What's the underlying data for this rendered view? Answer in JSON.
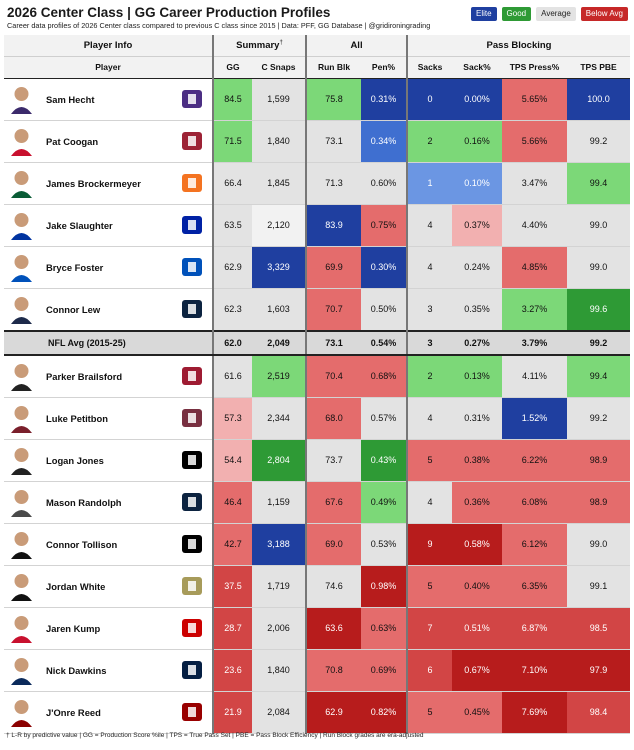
{
  "header": {
    "title": "2026 Center Class | GG Career Production Profiles",
    "subtitle": "Career data profiles of 2026 Center class compared to previous C class since 2015 | Data: PFF, GG Database | @gridironingrading"
  },
  "legend": [
    {
      "label": "Elite",
      "bg": "#1f3fa0",
      "fg": "#ffffff"
    },
    {
      "label": "Good",
      "bg": "#2e9a35",
      "fg": "#ffffff"
    },
    {
      "label": "Average",
      "bg": "#e3e3e3",
      "fg": "#222222"
    },
    {
      "label": "Below Avg",
      "bg": "#c62828",
      "fg": "#ffffff"
    }
  ],
  "groups": {
    "player_info": "Player Info",
    "summary": "Summary",
    "summary_mark": "†",
    "all": "All",
    "pass_blocking": "Pass Blocking"
  },
  "columns": {
    "player": "Player",
    "gg": "GG",
    "c_snaps": "C Snaps",
    "run_blk": "Run Blk",
    "pen": "Pen%",
    "sacks": "Sacks",
    "sack_pct": "Sack%",
    "tps_press": "TPS Press%",
    "tps_pbe": "TPS PBE"
  },
  "nfl_avg": {
    "label": "NFL Avg (2015-25)",
    "gg": "62.0",
    "c_snaps": "2,049",
    "run_blk": "73.1",
    "pen": "0.54%",
    "sacks": "3",
    "sack_pct": "0.27%",
    "tps_press": "3.79%",
    "tps_pbe": "99.2"
  },
  "chart_data": {
    "type": "table",
    "title": "2026 Center Class | GG Career Production Profiles",
    "columns": [
      "Player",
      "GG",
      "C Snaps",
      "Run Blk",
      "Pen%",
      "Sacks",
      "Sack%",
      "TPS Press%",
      "TPS PBE"
    ],
    "rows_top": [
      {
        "player": "Sam Hecht",
        "gg": "84.5",
        "c_snaps": "1,599",
        "run_blk": "75.8",
        "pen": "0.31%",
        "sacks": "0",
        "sack_pct": "0.00%",
        "tps_press": "5.65%",
        "tps_pbe": "100.0",
        "colors": {
          "gg": "#7cd878",
          "c_snaps": "#e3e3e3",
          "run_blk": "#7cd878",
          "pen": "#1f3fa0",
          "sacks": "#1f3fa0",
          "sack_pct": "#1f3fa0",
          "tps_press": "#e46c6c",
          "tps_pbe": "#1f3fa0"
        }
      },
      {
        "player": "Pat Coogan",
        "gg": "71.5",
        "c_snaps": "1,840",
        "run_blk": "73.1",
        "pen": "0.34%",
        "sacks": "2",
        "sack_pct": "0.16%",
        "tps_press": "5.66%",
        "tps_pbe": "99.2",
        "colors": {
          "gg": "#7cd878",
          "c_snaps": "#e3e3e3",
          "run_blk": "#e3e3e3",
          "pen": "#3f6fd0",
          "sacks": "#7cd878",
          "sack_pct": "#7cd878",
          "tps_press": "#e46c6c",
          "tps_pbe": "#e3e3e3"
        }
      },
      {
        "player": "James Brockermeyer",
        "gg": "66.4",
        "c_snaps": "1,845",
        "run_blk": "71.3",
        "pen": "0.60%",
        "sacks": "1",
        "sack_pct": "0.10%",
        "tps_press": "3.47%",
        "tps_pbe": "99.4",
        "colors": {
          "gg": "#e3e3e3",
          "c_snaps": "#e3e3e3",
          "run_blk": "#e3e3e3",
          "pen": "#e3e3e3",
          "sacks": "#6b96e3",
          "sack_pct": "#6b96e3",
          "tps_press": "#e3e3e3",
          "tps_pbe": "#7cd878"
        }
      },
      {
        "player": "Jake Slaughter",
        "gg": "63.5",
        "c_snaps": "2,120",
        "run_blk": "83.9",
        "pen": "0.75%",
        "sacks": "4",
        "sack_pct": "0.37%",
        "tps_press": "4.40%",
        "tps_pbe": "99.0",
        "colors": {
          "gg": "#e3e3e3",
          "c_snaps": "#f2f2f2",
          "run_blk": "#1f3fa0",
          "pen": "#e46c6c",
          "sacks": "#e3e3e3",
          "sack_pct": "#f2b0b0",
          "tps_press": "#e3e3e3",
          "tps_pbe": "#e3e3e3"
        }
      },
      {
        "player": "Bryce Foster",
        "gg": "62.9",
        "c_snaps": "3,329",
        "run_blk": "69.9",
        "pen": "0.30%",
        "sacks": "4",
        "sack_pct": "0.24%",
        "tps_press": "4.85%",
        "tps_pbe": "99.0",
        "colors": {
          "gg": "#e3e3e3",
          "c_snaps": "#1f3fa0",
          "run_blk": "#e46c6c",
          "pen": "#1f3fa0",
          "sacks": "#e3e3e3",
          "sack_pct": "#e3e3e3",
          "tps_press": "#e46c6c",
          "tps_pbe": "#e3e3e3"
        }
      },
      {
        "player": "Connor Lew",
        "gg": "62.3",
        "c_snaps": "1,603",
        "run_blk": "70.7",
        "pen": "0.50%",
        "sacks": "3",
        "sack_pct": "0.35%",
        "tps_press": "3.27%",
        "tps_pbe": "99.6",
        "colors": {
          "gg": "#e3e3e3",
          "c_snaps": "#e3e3e3",
          "run_blk": "#e46c6c",
          "pen": "#e3e3e3",
          "sacks": "#e3e3e3",
          "sack_pct": "#e3e3e3",
          "tps_press": "#7cd878",
          "tps_pbe": "#2e9a35"
        }
      }
    ],
    "rows_bottom": [
      {
        "player": "Parker Brailsford",
        "gg": "61.6",
        "c_snaps": "2,519",
        "run_blk": "70.4",
        "pen": "0.68%",
        "sacks": "2",
        "sack_pct": "0.13%",
        "tps_press": "4.11%",
        "tps_pbe": "99.4",
        "colors": {
          "gg": "#e3e3e3",
          "c_snaps": "#7cd878",
          "run_blk": "#e46c6c",
          "pen": "#e46c6c",
          "sacks": "#7cd878",
          "sack_pct": "#7cd878",
          "tps_press": "#e3e3e3",
          "tps_pbe": "#7cd878"
        }
      },
      {
        "player": "Luke Petitbon",
        "gg": "57.3",
        "c_snaps": "2,344",
        "run_blk": "68.0",
        "pen": "0.57%",
        "sacks": "4",
        "sack_pct": "0.31%",
        "tps_press": "1.52%",
        "tps_pbe": "99.2",
        "colors": {
          "gg": "#f2b0b0",
          "c_snaps": "#e3e3e3",
          "run_blk": "#e46c6c",
          "pen": "#e3e3e3",
          "sacks": "#e3e3e3",
          "sack_pct": "#e3e3e3",
          "tps_press": "#1f3fa0",
          "tps_pbe": "#e3e3e3"
        }
      },
      {
        "player": "Logan Jones",
        "gg": "54.4",
        "c_snaps": "2,804",
        "run_blk": "73.7",
        "pen": "0.43%",
        "sacks": "5",
        "sack_pct": "0.38%",
        "tps_press": "6.22%",
        "tps_pbe": "98.9",
        "colors": {
          "gg": "#f2b0b0",
          "c_snaps": "#2e9a35",
          "run_blk": "#e3e3e3",
          "pen": "#2e9a35",
          "sacks": "#e46c6c",
          "sack_pct": "#e46c6c",
          "tps_press": "#e46c6c",
          "tps_pbe": "#e46c6c"
        }
      },
      {
        "player": "Mason Randolph",
        "gg": "46.4",
        "c_snaps": "1,159",
        "run_blk": "67.6",
        "pen": "0.49%",
        "sacks": "4",
        "sack_pct": "0.36%",
        "tps_press": "6.08%",
        "tps_pbe": "98.9",
        "colors": {
          "gg": "#e46c6c",
          "c_snaps": "#e3e3e3",
          "run_blk": "#e46c6c",
          "pen": "#7cd878",
          "sacks": "#e3e3e3",
          "sack_pct": "#e46c6c",
          "tps_press": "#e46c6c",
          "tps_pbe": "#e46c6c"
        }
      },
      {
        "player": "Connor Tollison",
        "gg": "42.7",
        "c_snaps": "3,188",
        "run_blk": "69.0",
        "pen": "0.53%",
        "sacks": "9",
        "sack_pct": "0.58%",
        "tps_press": "6.12%",
        "tps_pbe": "99.0",
        "colors": {
          "gg": "#e46c6c",
          "c_snaps": "#1f3fa0",
          "run_blk": "#e46c6c",
          "pen": "#e3e3e3",
          "sacks": "#b71c1c",
          "sack_pct": "#b71c1c",
          "tps_press": "#e46c6c",
          "tps_pbe": "#e3e3e3"
        }
      },
      {
        "player": "Jordan White",
        "gg": "37.5",
        "c_snaps": "1,719",
        "run_blk": "74.6",
        "pen": "0.98%",
        "sacks": "5",
        "sack_pct": "0.40%",
        "tps_press": "6.35%",
        "tps_pbe": "99.1",
        "colors": {
          "gg": "#d24545",
          "c_snaps": "#e3e3e3",
          "run_blk": "#e3e3e3",
          "pen": "#b71c1c",
          "sacks": "#e46c6c",
          "sack_pct": "#e46c6c",
          "tps_press": "#e46c6c",
          "tps_pbe": "#e3e3e3"
        }
      },
      {
        "player": "Jaren Kump",
        "gg": "28.7",
        "c_snaps": "2,006",
        "run_blk": "63.6",
        "pen": "0.63%",
        "sacks": "7",
        "sack_pct": "0.51%",
        "tps_press": "6.87%",
        "tps_pbe": "98.5",
        "colors": {
          "gg": "#d24545",
          "c_snaps": "#e3e3e3",
          "run_blk": "#b71c1c",
          "pen": "#e46c6c",
          "sacks": "#d24545",
          "sack_pct": "#d24545",
          "tps_press": "#d24545",
          "tps_pbe": "#d24545"
        }
      },
      {
        "player": "Nick Dawkins",
        "gg": "23.6",
        "c_snaps": "1,840",
        "run_blk": "70.8",
        "pen": "0.69%",
        "sacks": "6",
        "sack_pct": "0.67%",
        "tps_press": "7.10%",
        "tps_pbe": "97.9",
        "colors": {
          "gg": "#d24545",
          "c_snaps": "#e3e3e3",
          "run_blk": "#e46c6c",
          "pen": "#e46c6c",
          "sacks": "#d24545",
          "sack_pct": "#b71c1c",
          "tps_press": "#b71c1c",
          "tps_pbe": "#b71c1c"
        }
      },
      {
        "player": "J'Onre Reed",
        "gg": "21.9",
        "c_snaps": "2,084",
        "run_blk": "62.9",
        "pen": "0.82%",
        "sacks": "5",
        "sack_pct": "0.45%",
        "tps_press": "7.69%",
        "tps_pbe": "98.4",
        "colors": {
          "gg": "#d24545",
          "c_snaps": "#e3e3e3",
          "run_blk": "#b71c1c",
          "pen": "#b71c1c",
          "sacks": "#e46c6c",
          "sack_pct": "#e46c6c",
          "tps_press": "#b71c1c",
          "tps_pbe": "#d24545"
        }
      }
    ]
  },
  "footnote": "† L-R by predictive value | GG = Production Score %ile | TPS = True Pass Set | PBE = Pass Block Efficiency | Run Block grades are era-adjusted"
}
